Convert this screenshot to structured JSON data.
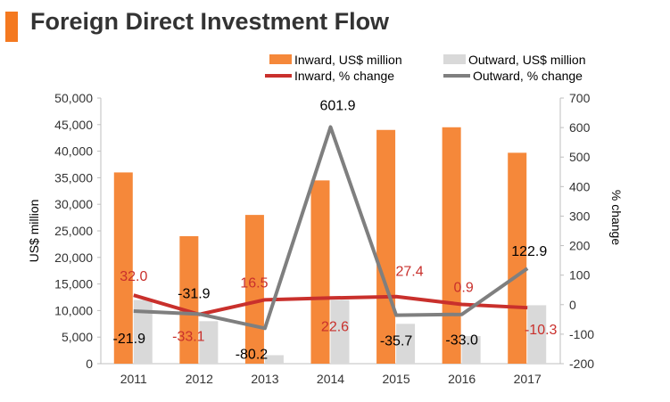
{
  "header": {
    "title": "Foreign Direct Investment Flow"
  },
  "colors": {
    "inward_bar": "#f5883a",
    "outward_bar": "#d9d9d9",
    "inward_line": "#c9302c",
    "outward_line": "#7f7f7f",
    "inward_label": "#c9302c",
    "outward_label": "#000000",
    "axis_text": "#333333",
    "accent": "#f47920"
  },
  "chart_data": {
    "type": "bar",
    "title": "Foreign Direct Investment Flow",
    "categories": [
      "2011",
      "2012",
      "2013",
      "2014",
      "2015",
      "2016",
      "2017"
    ],
    "ylabel": "US$ million",
    "y2label": "% change",
    "ylim": [
      0,
      50000
    ],
    "y2lim": [
      -200,
      700
    ],
    "yticks": [
      "0",
      "5,000",
      "10,000",
      "15,000",
      "20,000",
      "25,000",
      "30,000",
      "35,000",
      "40,000",
      "45,000",
      "50,000"
    ],
    "y2ticks": [
      "-200",
      "-100",
      "0",
      "100",
      "200",
      "300",
      "400",
      "500",
      "600",
      "700"
    ],
    "grid": false,
    "legend_position": "top",
    "series": [
      {
        "name": "Inward, US$ million",
        "kind": "bar",
        "axis": "left",
        "values": [
          36000,
          24000,
          28000,
          34500,
          44000,
          44500,
          39700
        ]
      },
      {
        "name": "Outward, US$ million",
        "kind": "bar",
        "axis": "left",
        "values": [
          12000,
          8000,
          1600,
          12000,
          7500,
          5200,
          11000
        ]
      },
      {
        "name": "Inward, % change",
        "kind": "line",
        "axis": "right",
        "values": [
          32.0,
          -33.1,
          16.5,
          22.6,
          27.4,
          0.9,
          -10.3
        ],
        "labels": [
          "32.0",
          "-33.1",
          "16.5",
          "22.6",
          "27.4",
          "0.9",
          "-10.3"
        ]
      },
      {
        "name": "Outward, % change",
        "kind": "line",
        "axis": "right",
        "values": [
          -21.9,
          -31.9,
          -80.2,
          601.9,
          -35.7,
          -33.0,
          122.9
        ],
        "labels": [
          "-21.9",
          "-31.9",
          "-80.2",
          "601.9",
          "-35.7",
          "-33.0",
          "122.9"
        ]
      }
    ]
  }
}
